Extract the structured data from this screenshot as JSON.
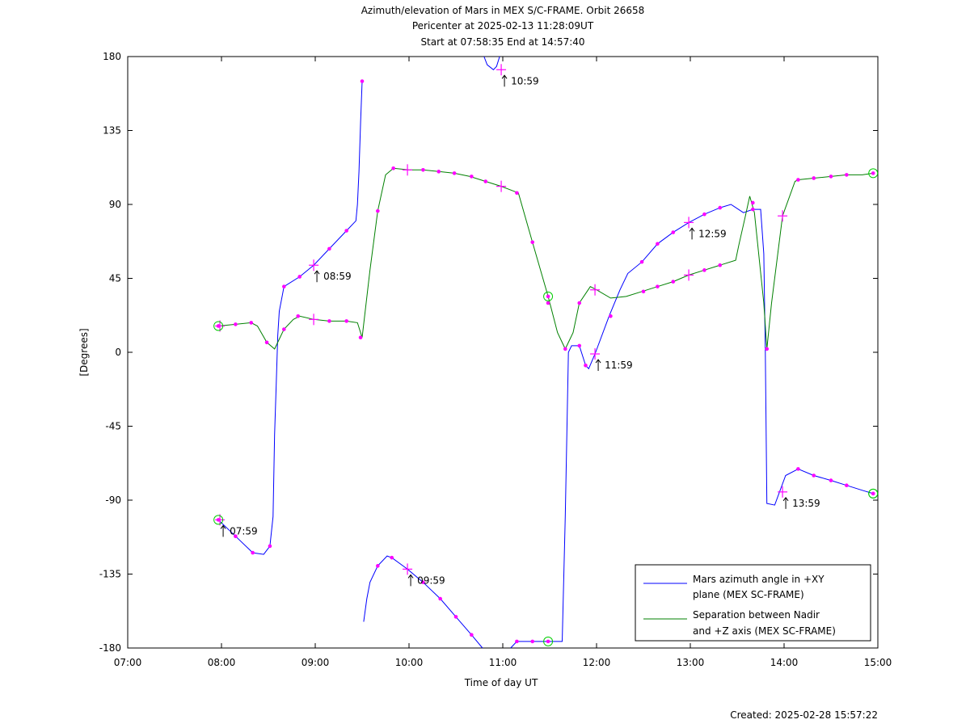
{
  "chart_data": {
    "type": "line",
    "title_lines": [
      "Azimuth/elevation of Mars in MEX S/C-FRAME.  Orbit 26658",
      "Pericenter at 2025-02-13 11:28:09UT",
      "Start at 07:58:35 End at 14:57:40"
    ],
    "xlabel": "Time of day UT",
    "ylabel": "[Degrees]",
    "xlim": [
      "07:00",
      "15:00"
    ],
    "ylim": [
      -180,
      180
    ],
    "x_ticks": [
      "07:00",
      "08:00",
      "09:00",
      "10:00",
      "11:00",
      "12:00",
      "13:00",
      "14:00",
      "15:00"
    ],
    "y_ticks": [
      180,
      135,
      90,
      45,
      0,
      -45,
      -90,
      -135,
      -180
    ],
    "grid": false,
    "legend_position": "bottom-right",
    "series": [
      {
        "name": "Mars azimuth angle in +XY plane (MEX SC-FRAME)",
        "legend_lines": [
          "Mars azimuth angle in +XY",
          "plane (MEX SC-FRAME)"
        ],
        "color": "#0000ff",
        "points": [
          [
            "07:58",
            -102
          ],
          [
            "08:09",
            -112
          ],
          [
            "08:20",
            -122
          ],
          [
            "08:27",
            -123
          ],
          [
            "08:31",
            -118
          ],
          [
            "08:33",
            -100
          ],
          [
            "08:34",
            -50
          ],
          [
            "08:35",
            -20
          ],
          [
            "08:36",
            10
          ],
          [
            "08:37",
            25
          ],
          [
            "08:39",
            35
          ],
          [
            "08:40",
            40
          ],
          [
            "08:50",
            46
          ],
          [
            "08:59",
            53
          ],
          [
            "09:09",
            63
          ],
          [
            "09:20",
            74
          ],
          [
            "09:26",
            80
          ],
          [
            "09:27",
            90
          ],
          [
            "09:28",
            110
          ],
          [
            "09:29",
            140
          ],
          [
            "09:30",
            165
          ],
          [
            "09:31",
            -164
          ],
          [
            "09:33",
            -150
          ],
          [
            "09:35",
            -140
          ],
          [
            "09:40",
            -130
          ],
          [
            "09:46",
            -124
          ],
          [
            "09:49",
            -125
          ],
          [
            "09:59",
            -132
          ],
          [
            "10:09",
            -140
          ],
          [
            "10:20",
            -150
          ],
          [
            "10:30",
            -161
          ],
          [
            "10:40",
            -172
          ],
          [
            "10:47",
            -180
          ],
          [
            "10:48",
            180
          ],
          [
            "10:50",
            175
          ],
          [
            "10:54",
            172
          ],
          [
            "10:56",
            174
          ],
          [
            "10:58",
            180
          ],
          [
            "11:05",
            -180
          ],
          [
            "11:09",
            -176
          ],
          [
            "11:29",
            -176
          ],
          [
            "11:38",
            -176
          ],
          [
            "11:40",
            -100
          ],
          [
            "11:42",
            0
          ],
          [
            "11:44",
            4
          ],
          [
            "11:49",
            4
          ],
          [
            "11:53",
            -8
          ],
          [
            "11:55",
            -10
          ],
          [
            "11:59",
            -1
          ],
          [
            "12:08",
            22
          ],
          [
            "12:15",
            38
          ],
          [
            "12:20",
            48
          ],
          [
            "12:29",
            55
          ],
          [
            "12:39",
            66
          ],
          [
            "12:49",
            73
          ],
          [
            "12:59",
            79
          ],
          [
            "13:09",
            84
          ],
          [
            "13:19",
            88
          ],
          [
            "13:26",
            90
          ],
          [
            "13:34",
            85
          ],
          [
            "13:40",
            87
          ],
          [
            "13:45",
            87
          ],
          [
            "13:47",
            60
          ],
          [
            "13:48",
            0
          ],
          [
            "13:49",
            -92
          ],
          [
            "13:54",
            -93
          ],
          [
            "14:01",
            -75
          ],
          [
            "14:09",
            -71
          ],
          [
            "14:19",
            -75
          ],
          [
            "14:30",
            -78
          ],
          [
            "14:40",
            -81
          ],
          [
            "14:50",
            -84
          ],
          [
            "14:57",
            -86
          ]
        ],
        "markers": [
          [
            "08:09",
            -112
          ],
          [
            "08:20",
            -122
          ],
          [
            "08:31",
            -118
          ],
          [
            "08:40",
            40
          ],
          [
            "08:50",
            46
          ],
          [
            "09:09",
            63
          ],
          [
            "09:20",
            74
          ],
          [
            "09:30",
            165
          ],
          [
            "09:40",
            -130
          ],
          [
            "09:49",
            -125
          ],
          [
            "10:09",
            -140
          ],
          [
            "10:20",
            -150
          ],
          [
            "10:30",
            -161
          ],
          [
            "10:40",
            -172
          ],
          [
            "11:09",
            -176
          ],
          [
            "11:19",
            -176
          ],
          [
            "11:49",
            4
          ],
          [
            "11:53",
            -8
          ],
          [
            "12:09",
            22
          ],
          [
            "12:29",
            55
          ],
          [
            "12:39",
            66
          ],
          [
            "12:49",
            73
          ],
          [
            "13:09",
            84
          ],
          [
            "13:19",
            88
          ],
          [
            "13:40",
            87
          ],
          [
            "14:09",
            -71
          ],
          [
            "14:19",
            -75
          ],
          [
            "14:30",
            -78
          ],
          [
            "14:40",
            -81
          ]
        ],
        "time_marks": [
          {
            "x": "07:59",
            "y": -102,
            "label": "07:59"
          },
          {
            "x": "08:59",
            "y": 53,
            "label": "08:59"
          },
          {
            "x": "09:59",
            "y": -132,
            "label": "09:59"
          },
          {
            "x": "10:59",
            "y": 172,
            "label": "10:59"
          },
          {
            "x": "11:59",
            "y": -1,
            "label": "11:59"
          },
          {
            "x": "12:59",
            "y": 79,
            "label": "12:59"
          },
          {
            "x": "13:59",
            "y": -85,
            "label": "13:59"
          }
        ],
        "endpoints": [
          [
            "07:58",
            -102
          ],
          [
            "14:57",
            -86
          ]
        ]
      },
      {
        "name": "Separation between Nadir and +Z axis (MEX SC-FRAME)",
        "legend_lines": [
          "Separation between Nadir",
          "and +Z axis (MEX SC-FRAME)"
        ],
        "color": "#008000",
        "points": [
          [
            "07:58",
            16
          ],
          [
            "08:09",
            17
          ],
          [
            "08:19",
            18
          ],
          [
            "08:23",
            16
          ],
          [
            "08:29",
            6
          ],
          [
            "08:34",
            2
          ],
          [
            "08:40",
            14
          ],
          [
            "08:46",
            20
          ],
          [
            "08:50",
            22
          ],
          [
            "08:59",
            20
          ],
          [
            "09:09",
            19
          ],
          [
            "09:20",
            19
          ],
          [
            "09:27",
            18
          ],
          [
            "09:30",
            9
          ],
          [
            "09:35",
            50
          ],
          [
            "09:40",
            86
          ],
          [
            "09:45",
            108
          ],
          [
            "09:50",
            112
          ],
          [
            "10:00",
            111
          ],
          [
            "10:09",
            111
          ],
          [
            "10:19",
            110
          ],
          [
            "10:29",
            109
          ],
          [
            "10:39",
            107
          ],
          [
            "10:49",
            104
          ],
          [
            "10:59",
            101
          ],
          [
            "11:10",
            97
          ],
          [
            "11:19",
            67
          ],
          [
            "11:29",
            34
          ],
          [
            "11:35",
            12
          ],
          [
            "11:40",
            2
          ],
          [
            "11:45",
            12
          ],
          [
            "11:49",
            30
          ],
          [
            "11:56",
            40
          ],
          [
            "12:00",
            38
          ],
          [
            "12:09",
            33
          ],
          [
            "12:19",
            34
          ],
          [
            "12:29",
            37
          ],
          [
            "12:39",
            40
          ],
          [
            "12:49",
            43
          ],
          [
            "12:59",
            47
          ],
          [
            "13:09",
            50
          ],
          [
            "13:19",
            53
          ],
          [
            "13:29",
            56
          ],
          [
            "13:31",
            65
          ],
          [
            "13:35",
            82
          ],
          [
            "13:38",
            95
          ],
          [
            "13:41",
            85
          ],
          [
            "13:47",
            30
          ],
          [
            "13:49",
            2
          ],
          [
            "13:52",
            30
          ],
          [
            "13:59",
            83
          ],
          [
            "14:07",
            104
          ],
          [
            "14:09",
            105
          ],
          [
            "14:19",
            106
          ],
          [
            "14:30",
            107
          ],
          [
            "14:40",
            108
          ],
          [
            "14:50",
            108
          ],
          [
            "14:57",
            109
          ]
        ],
        "markers": [
          [
            "08:09",
            17
          ],
          [
            "08:19",
            18
          ],
          [
            "08:29",
            6
          ],
          [
            "08:40",
            14
          ],
          [
            "08:49",
            22
          ],
          [
            "09:09",
            19
          ],
          [
            "09:20",
            19
          ],
          [
            "09:29",
            9
          ],
          [
            "09:40",
            86
          ],
          [
            "09:50",
            112
          ],
          [
            "10:09",
            111
          ],
          [
            "10:19",
            110
          ],
          [
            "10:29",
            109
          ],
          [
            "10:40",
            107
          ],
          [
            "10:49",
            104
          ],
          [
            "11:09",
            97
          ],
          [
            "11:19",
            67
          ],
          [
            "11:29",
            30
          ],
          [
            "11:40",
            2
          ],
          [
            "11:49",
            30
          ],
          [
            "12:30",
            37
          ],
          [
            "12:39",
            40
          ],
          [
            "12:49",
            43
          ],
          [
            "13:09",
            50
          ],
          [
            "13:19",
            53
          ],
          [
            "13:40",
            91
          ],
          [
            "13:49",
            2
          ],
          [
            "14:09",
            105
          ],
          [
            "14:19",
            106
          ],
          [
            "14:30",
            107
          ],
          [
            "14:40",
            108
          ]
        ],
        "time_marks": [
          {
            "x": "07:59",
            "y": 16
          },
          {
            "x": "08:59",
            "y": 20
          },
          {
            "x": "09:59",
            "y": 111
          },
          {
            "x": "10:59",
            "y": 101
          },
          {
            "x": "11:59",
            "y": 38
          },
          {
            "x": "12:59",
            "y": 47
          },
          {
            "x": "13:59",
            "y": 83
          }
        ],
        "endpoints": [
          [
            "07:58",
            16
          ],
          [
            "11:29",
            34
          ],
          [
            "11:29",
            -176
          ],
          [
            "14:57",
            109
          ],
          [
            "14:57",
            -86
          ]
        ]
      }
    ]
  },
  "footer": {
    "created": "Created: 2025-02-28 15:57:22"
  }
}
